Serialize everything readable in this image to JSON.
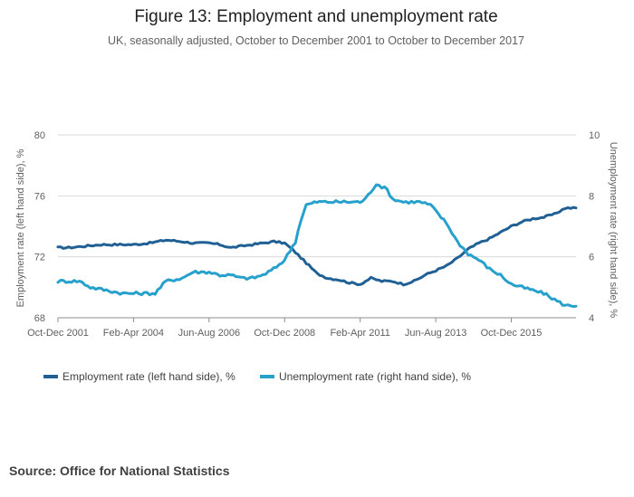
{
  "chart_data": {
    "type": "line",
    "title": "Figure 13: Employment and unemployment rate",
    "subtitle": "UK, seasonally adjusted, October to December 2001 to October to December 2017",
    "x_tick_labels": [
      "Oct-Dec 2001",
      "Feb-Apr 2004",
      "Jun-Aug 2006",
      "Oct-Dec 2008",
      "Feb-Apr 2011",
      "Jun-Aug 2013",
      "Oct-Dec 2015"
    ],
    "x_tick_index": [
      0,
      28,
      56,
      84,
      112,
      140,
      168
    ],
    "n_periods": 193,
    "y_left": {
      "label": "Employment rate (left hand side), %",
      "range": [
        68,
        80
      ],
      "ticks": [
        "68",
        "72",
        "76",
        "80"
      ],
      "tick_values": [
        68,
        72,
        76,
        80
      ]
    },
    "y_right": {
      "label": "Unemployment rate (right hand side), %",
      "range": [
        4,
        10
      ],
      "ticks": [
        "4",
        "6",
        "8",
        "10"
      ],
      "tick_values": [
        4,
        6,
        8,
        10
      ]
    },
    "grid": true,
    "legend_position": "bottom-left",
    "series": [
      {
        "name": "Employment rate (left hand side), %",
        "axis": "left",
        "color": "#206095",
        "points": [
          [
            0,
            72.6
          ],
          [
            4,
            72.6
          ],
          [
            10,
            72.7
          ],
          [
            16,
            72.8
          ],
          [
            22,
            72.8
          ],
          [
            28,
            72.8
          ],
          [
            34,
            72.9
          ],
          [
            40,
            73.1
          ],
          [
            46,
            73.0
          ],
          [
            50,
            72.9
          ],
          [
            56,
            72.9
          ],
          [
            60,
            72.8
          ],
          [
            64,
            72.6
          ],
          [
            68,
            72.7
          ],
          [
            72,
            72.8
          ],
          [
            76,
            72.9
          ],
          [
            80,
            73.0
          ],
          [
            84,
            72.9
          ],
          [
            86,
            72.6
          ],
          [
            88,
            72.3
          ],
          [
            92,
            71.6
          ],
          [
            96,
            70.9
          ],
          [
            100,
            70.6
          ],
          [
            104,
            70.5
          ],
          [
            108,
            70.3
          ],
          [
            112,
            70.2
          ],
          [
            116,
            70.6
          ],
          [
            120,
            70.4
          ],
          [
            124,
            70.4
          ],
          [
            128,
            70.2
          ],
          [
            132,
            70.4
          ],
          [
            136,
            70.8
          ],
          [
            140,
            71.1
          ],
          [
            144,
            71.4
          ],
          [
            148,
            71.9
          ],
          [
            152,
            72.5
          ],
          [
            156,
            72.9
          ],
          [
            160,
            73.2
          ],
          [
            164,
            73.6
          ],
          [
            168,
            74.0
          ],
          [
            172,
            74.3
          ],
          [
            176,
            74.5
          ],
          [
            180,
            74.6
          ],
          [
            184,
            74.8
          ],
          [
            188,
            75.2
          ],
          [
            192,
            75.2
          ]
        ],
        "noise": 0.06
      },
      {
        "name": "Unemployment rate (right hand side), %",
        "axis": "right",
        "color": "#27a0cc",
        "points": [
          [
            0,
            5.2
          ],
          [
            8,
            5.2
          ],
          [
            12,
            5.0
          ],
          [
            18,
            4.9
          ],
          [
            24,
            4.8
          ],
          [
            28,
            4.8
          ],
          [
            32,
            4.8
          ],
          [
            36,
            4.8
          ],
          [
            40,
            5.2
          ],
          [
            46,
            5.3
          ],
          [
            50,
            5.5
          ],
          [
            56,
            5.5
          ],
          [
            60,
            5.4
          ],
          [
            64,
            5.4
          ],
          [
            68,
            5.3
          ],
          [
            72,
            5.3
          ],
          [
            76,
            5.4
          ],
          [
            80,
            5.6
          ],
          [
            84,
            5.9
          ],
          [
            88,
            6.5
          ],
          [
            90,
            7.2
          ],
          [
            92,
            7.7
          ],
          [
            96,
            7.8
          ],
          [
            100,
            7.8
          ],
          [
            104,
            7.8
          ],
          [
            108,
            7.8
          ],
          [
            112,
            7.8
          ],
          [
            114,
            7.9
          ],
          [
            118,
            8.4
          ],
          [
            122,
            8.2
          ],
          [
            124,
            7.9
          ],
          [
            128,
            7.8
          ],
          [
            132,
            7.8
          ],
          [
            134,
            7.8
          ],
          [
            138,
            7.7
          ],
          [
            140,
            7.5
          ],
          [
            144,
            7.1
          ],
          [
            148,
            6.5
          ],
          [
            152,
            6.1
          ],
          [
            156,
            5.9
          ],
          [
            160,
            5.6
          ],
          [
            164,
            5.4
          ],
          [
            168,
            5.1
          ],
          [
            172,
            5.0
          ],
          [
            176,
            4.9
          ],
          [
            180,
            4.8
          ],
          [
            184,
            4.6
          ],
          [
            188,
            4.4
          ],
          [
            192,
            4.4
          ]
        ],
        "noise": 0.05
      }
    ]
  },
  "source": "Source: Office for National Statistics"
}
